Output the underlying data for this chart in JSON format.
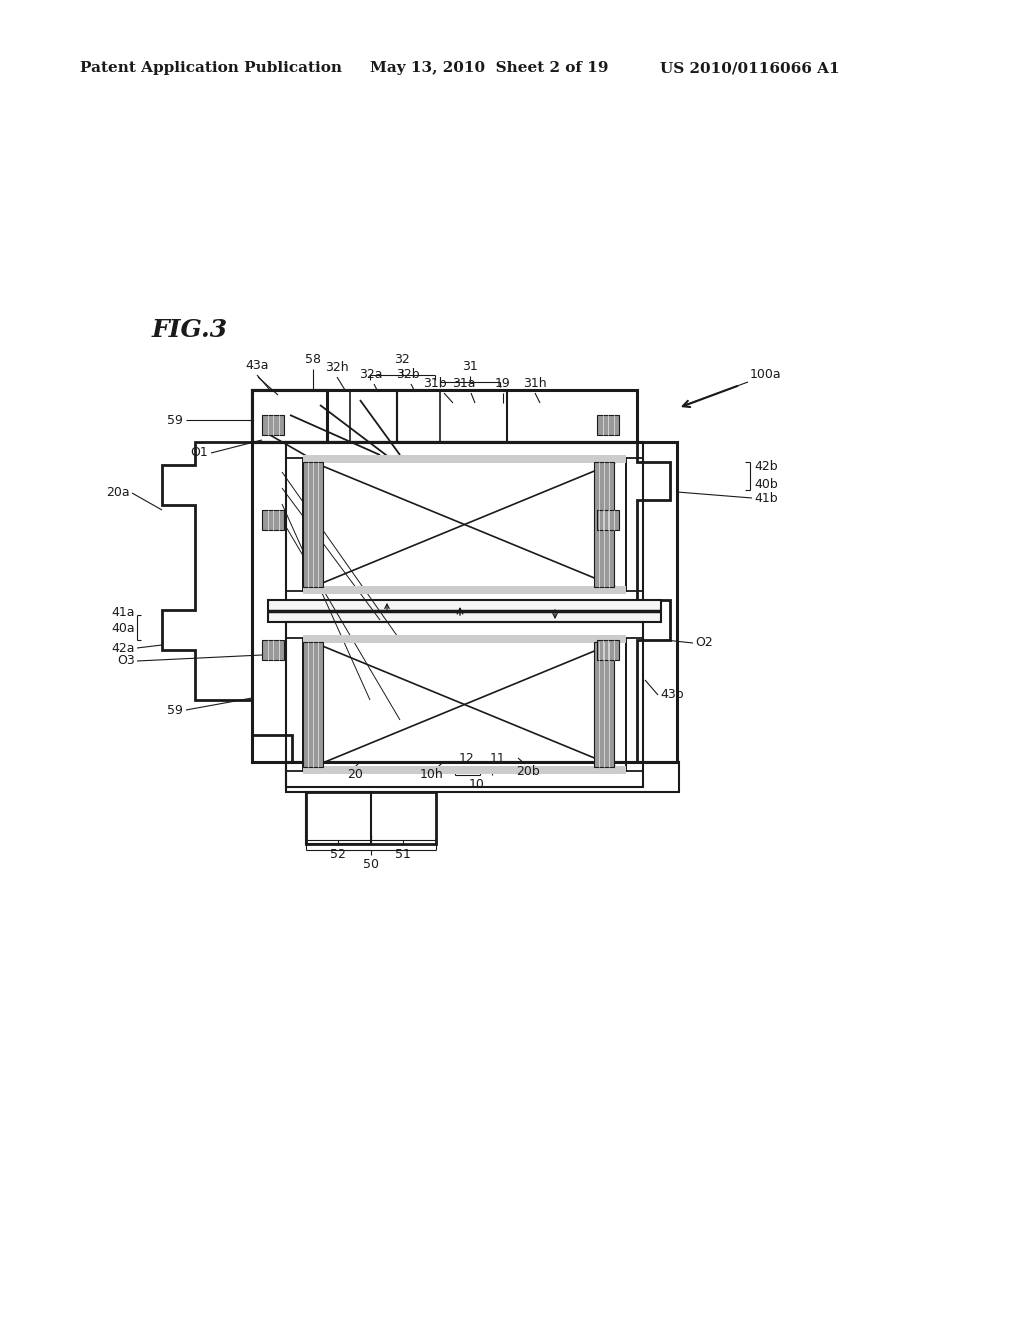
{
  "bg_color": "#ffffff",
  "header_left": "Patent Application Publication",
  "header_mid": "May 13, 2010  Sheet 2 of 19",
  "header_right": "US 2010/0116066 A1",
  "fig_label": "FIG.3",
  "line_color": "#1a1a1a",
  "line_width": 1.5,
  "thin_line": 0.8
}
